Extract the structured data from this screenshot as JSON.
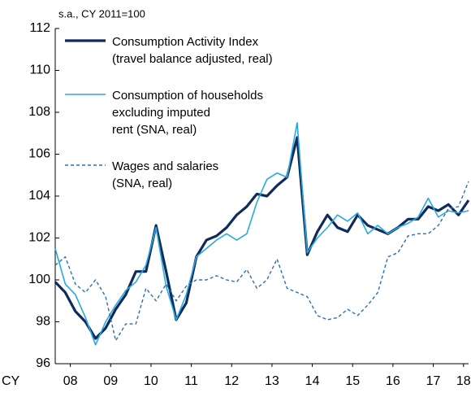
{
  "chart_data": {
    "type": "line",
    "subtitle": "s.a., CY 2011=100",
    "xlabel": "CY",
    "x": [
      2008,
      2008.25,
      2008.5,
      2008.75,
      2009,
      2009.25,
      2009.5,
      2009.75,
      2010,
      2010.25,
      2010.5,
      2010.75,
      2011,
      2011.25,
      2011.5,
      2011.75,
      2012,
      2012.25,
      2012.5,
      2012.75,
      2013,
      2013.25,
      2013.5,
      2013.75,
      2014,
      2014.25,
      2014.5,
      2014.75,
      2015,
      2015.25,
      2015.5,
      2015.75,
      2016,
      2016.25,
      2016.5,
      2016.75,
      2017,
      2017.25,
      2017.5,
      2017.75,
      2018,
      2018.25
    ],
    "xlim": [
      2008,
      2018.25
    ],
    "xticks": [
      {
        "value": 2008.375,
        "label": "08"
      },
      {
        "value": 2009.375,
        "label": "09"
      },
      {
        "value": 2010.375,
        "label": "10"
      },
      {
        "value": 2011.375,
        "label": "11"
      },
      {
        "value": 2012.375,
        "label": "12"
      },
      {
        "value": 2013.375,
        "label": "13"
      },
      {
        "value": 2014.375,
        "label": "14"
      },
      {
        "value": 2015.375,
        "label": "15"
      },
      {
        "value": 2016.375,
        "label": "16"
      },
      {
        "value": 2017.375,
        "label": "17"
      },
      {
        "value": 2018.125,
        "label": "18"
      }
    ],
    "ylim": [
      96,
      112
    ],
    "yticks": [
      96,
      98,
      100,
      102,
      104,
      106,
      108,
      110,
      112
    ],
    "legend": "upper left",
    "series": [
      {
        "name": "Consumption Activity Index\n(travel balance adjusted, real)",
        "color": "#0f2b5b",
        "width": 3.2,
        "dash": false,
        "values": [
          99.9,
          99.4,
          98.5,
          98.0,
          97.2,
          97.7,
          98.6,
          99.3,
          100.4,
          100.4,
          102.6,
          100.4,
          98.1,
          98.9,
          101.1,
          101.9,
          102.1,
          102.5,
          103.1,
          103.5,
          104.1,
          104.0,
          104.5,
          104.9,
          106.8,
          101.2,
          102.3,
          103.1,
          102.5,
          102.3,
          103.1,
          102.6,
          102.4,
          102.2,
          102.5,
          102.9,
          102.9,
          103.5,
          103.3,
          103.6,
          103.1,
          103.8
        ]
      },
      {
        "name": "Consumption of households\nexcluding imputed\nrent (SNA, real)",
        "color": "#29a9e0",
        "width": 1.6,
        "dash": false,
        "values": [
          101.5,
          99.8,
          99.3,
          98.2,
          96.9,
          98.0,
          98.8,
          99.5,
          99.9,
          100.7,
          102.5,
          99.7,
          98.1,
          99.3,
          101.1,
          101.5,
          101.9,
          102.2,
          101.9,
          102.2,
          103.7,
          104.8,
          105.1,
          104.9,
          107.5,
          101.3,
          102.0,
          102.5,
          103.1,
          102.8,
          103.2,
          102.2,
          102.6,
          102.2,
          102.5,
          102.7,
          103.0,
          103.9,
          103.0,
          103.3,
          103.2,
          103.3
        ]
      },
      {
        "name": "Wages and salaries\n(SNA, real)",
        "color": "#2a6fb5",
        "width": 1.4,
        "dash": true,
        "values": [
          100.7,
          101.1,
          99.8,
          99.4,
          100.0,
          99.2,
          97.1,
          97.9,
          97.9,
          99.6,
          99.0,
          99.8,
          99.0,
          99.7,
          100.0,
          100.0,
          100.2,
          100.0,
          99.9,
          100.5,
          99.6,
          100.0,
          101.0,
          99.6,
          99.4,
          99.2,
          98.3,
          98.1,
          98.2,
          98.6,
          98.3,
          98.8,
          99.4,
          101.1,
          101.3,
          102.1,
          102.2,
          102.2,
          102.6,
          103.4,
          103.5,
          104.7
        ]
      }
    ]
  }
}
